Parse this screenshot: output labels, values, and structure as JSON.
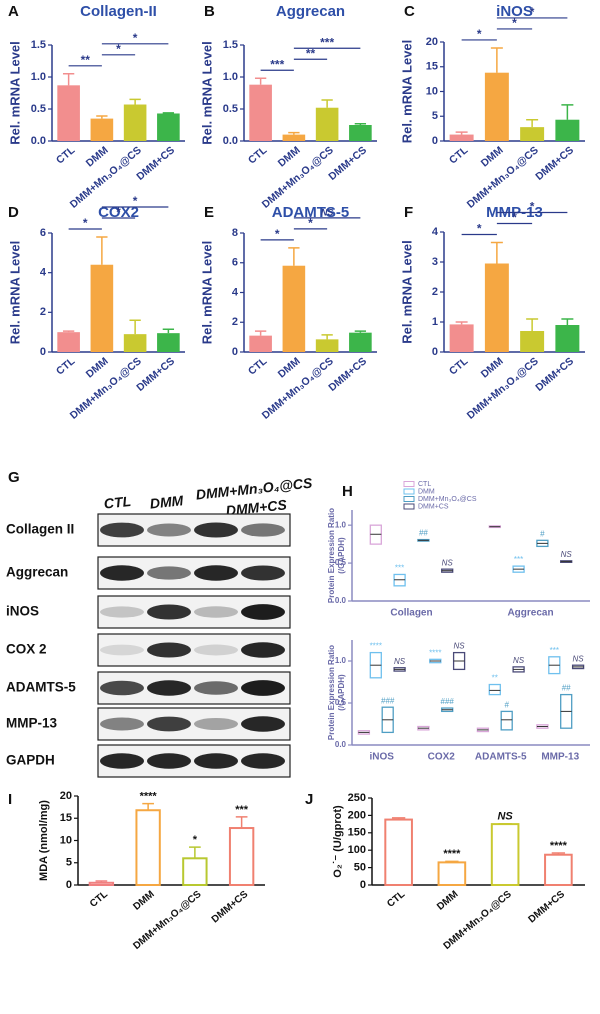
{
  "chart_data": [
    {
      "type": "bar",
      "panel": "A",
      "title": "Collagen-II",
      "ylabel": "Rel. mRNA Level",
      "categories": [
        "CTL",
        "DMM",
        "DMM+Mn₃O₄@CS",
        "DMM+CS"
      ],
      "values": [
        0.87,
        0.35,
        0.57,
        0.43
      ],
      "errors": [
        0.18,
        0.04,
        0.08,
        0.01
      ],
      "colors": [
        "#f28e8e",
        "#f5a742",
        "#c9c930",
        "#3cb54a"
      ],
      "ylim": [
        0,
        1.5
      ],
      "yticks": [
        {
          "value": 0,
          "label": "0.0"
        },
        {
          "value": 0.5,
          "label": "0.5"
        },
        {
          "value": 1,
          "label": "1.0"
        },
        {
          "value": 1.5,
          "label": "1.5"
        }
      ],
      "comparisons": [
        {
          "pair": [
            "CTL",
            "DMM"
          ],
          "label": "**"
        },
        {
          "pair": [
            "DMM",
            "DMM+Mn₃O₄@CS"
          ],
          "label": "*"
        },
        {
          "pair": [
            "DMM",
            "DMM+CS"
          ],
          "label": "*"
        }
      ]
    },
    {
      "type": "bar",
      "panel": "B",
      "title": "Aggrecan",
      "ylabel": "Rel. mRNA Level",
      "categories": [
        "CTL",
        "DMM",
        "DMM+Mn₃O₄@CS",
        "DMM+CS"
      ],
      "values": [
        0.88,
        0.1,
        0.52,
        0.25
      ],
      "errors": [
        0.1,
        0.03,
        0.12,
        0.02
      ],
      "colors": [
        "#f28e8e",
        "#f5a742",
        "#c9c930",
        "#3cb54a"
      ],
      "ylim": [
        0,
        1.5
      ],
      "yticks": [
        {
          "value": 0,
          "label": "0.0"
        },
        {
          "value": 0.5,
          "label": "0.5"
        },
        {
          "value": 1,
          "label": "1.0"
        },
        {
          "value": 1.5,
          "label": "1.5"
        }
      ],
      "comparisons": [
        {
          "pair": [
            "CTL",
            "DMM"
          ],
          "label": "***"
        },
        {
          "pair": [
            "DMM",
            "DMM+Mn₃O₄@CS"
          ],
          "label": "**"
        },
        {
          "pair": [
            "DMM",
            "DMM+CS"
          ],
          "label": "***"
        }
      ]
    },
    {
      "type": "bar",
      "panel": "C",
      "title": "iNOS",
      "ylabel": "Rel. mRNA Level",
      "categories": [
        "CTL",
        "DMM",
        "DMM+Mn₃O₄@CS",
        "DMM+CS"
      ],
      "values": [
        1.3,
        13.8,
        2.8,
        4.3
      ],
      "errors": [
        0.5,
        5,
        1.5,
        3
      ],
      "colors": [
        "#f28e8e",
        "#f5a742",
        "#c9c930",
        "#3cb54a"
      ],
      "ylim": [
        0,
        20
      ],
      "yticks": [
        0,
        5,
        10,
        15,
        20
      ],
      "comparisons": [
        {
          "pair": [
            "CTL",
            "DMM"
          ],
          "label": "*"
        },
        {
          "pair": [
            "DMM",
            "DMM+Mn₃O₄@CS"
          ],
          "label": "*"
        },
        {
          "pair": [
            "DMM",
            "DMM+CS"
          ],
          "label": "*"
        }
      ]
    },
    {
      "type": "bar",
      "panel": "D",
      "title": "COX2",
      "ylabel": "Rel. mRNA Level",
      "categories": [
        "CTL",
        "DMM",
        "DMM+Mn₃O₄@CS",
        "DMM+CS"
      ],
      "values": [
        1.0,
        4.4,
        0.9,
        0.95
      ],
      "errors": [
        0.05,
        1.4,
        0.7,
        0.2
      ],
      "colors": [
        "#f28e8e",
        "#f5a742",
        "#c9c930",
        "#3cb54a"
      ],
      "ylim": [
        0,
        6
      ],
      "yticks": [
        0,
        2,
        4,
        6
      ],
      "comparisons": [
        {
          "pair": [
            "CTL",
            "DMM"
          ],
          "label": "*"
        },
        {
          "pair": [
            "DMM",
            "DMM+Mn₃O₄@CS"
          ],
          "label": "*"
        },
        {
          "pair": [
            "DMM",
            "DMM+CS"
          ],
          "label": "*"
        }
      ]
    },
    {
      "type": "bar",
      "panel": "E",
      "title": "ADAMTS-5",
      "ylabel": "Rel. mRNA Level",
      "categories": [
        "CTL",
        "DMM",
        "DMM+Mn₃O₄@CS",
        "DMM+CS"
      ],
      "values": [
        1.1,
        5.8,
        0.85,
        1.3
      ],
      "errors": [
        0.3,
        1.2,
        0.3,
        0.1
      ],
      "colors": [
        "#f28e8e",
        "#f5a742",
        "#c9c930",
        "#3cb54a"
      ],
      "ylim": [
        0,
        8
      ],
      "yticks": [
        0,
        2,
        4,
        6,
        8
      ],
      "comparisons": [
        {
          "pair": [
            "CTL",
            "DMM"
          ],
          "label": "*"
        },
        {
          "pair": [
            "DMM",
            "DMM+Mn₃O₄@CS"
          ],
          "label": "*"
        },
        {
          "pair": [
            "DMM",
            "DMM+CS"
          ],
          "label": "NS"
        }
      ]
    },
    {
      "type": "bar",
      "panel": "F",
      "title": "MMP-13",
      "ylabel": "Rel. mRNA Level",
      "categories": [
        "CTL",
        "DMM",
        "DMM+Mn₃O₄@CS",
        "DMM+CS"
      ],
      "values": [
        0.92,
        2.95,
        0.7,
        0.9
      ],
      "errors": [
        0.08,
        0.7,
        0.4,
        0.2
      ],
      "colors": [
        "#f28e8e",
        "#f5a742",
        "#c9c930",
        "#3cb54a"
      ],
      "ylim": [
        0,
        4
      ],
      "yticks": [
        0,
        1,
        2,
        3,
        4
      ],
      "comparisons": [
        {
          "pair": [
            "CTL",
            "DMM"
          ],
          "label": "*"
        },
        {
          "pair": [
            "DMM",
            "DMM+Mn₃O₄@CS"
          ],
          "label": "*"
        },
        {
          "pair": [
            "DMM",
            "DMM+CS"
          ],
          "label": "*"
        }
      ]
    },
    {
      "type": "box",
      "panel": "H",
      "ylabel": [
        "Protein Expression Ratio",
        "(/GAPDH)"
      ],
      "legend": "upper left",
      "categories": [
        "Collagen",
        "Aggrecan"
      ],
      "ylim": [
        0,
        1.2
      ],
      "yticks": [
        {
          "value": 0,
          "label": "0.0"
        },
        {
          "value": 0.5,
          "label": "0.5"
        },
        {
          "value": 1,
          "label": "1.0"
        }
      ],
      "series": [
        {
          "name": "CTL",
          "color": "#d9a6d9",
          "values": [
            0.88,
            0.98
          ],
          "low": [
            0.75,
            0.97
          ],
          "high": [
            1.0,
            0.99
          ],
          "annotations": [
            null,
            null
          ]
        },
        {
          "name": "DMM",
          "color": "#6fc0ee",
          "values": [
            0.28,
            0.42
          ],
          "low": [
            0.2,
            0.38
          ],
          "high": [
            0.35,
            0.46
          ],
          "annotations": [
            "***",
            "***"
          ]
        },
        {
          "name": "DMM+Mn₃O₄@CS",
          "color": "#4f9ec4",
          "values": [
            0.8,
            0.76
          ],
          "low": [
            0.79,
            0.72
          ],
          "high": [
            0.81,
            0.8
          ],
          "annotations": [
            "##",
            "#"
          ]
        },
        {
          "name": "DMM+CS",
          "color": "#4a4a78",
          "values": [
            0.4,
            0.52
          ],
          "low": [
            0.38,
            0.51
          ],
          "high": [
            0.42,
            0.53
          ],
          "annotations": [
            "NS",
            "NS"
          ]
        }
      ]
    },
    {
      "type": "box",
      "ylabel": [
        "Protein Expression Ratio",
        "(/GAPDH)"
      ],
      "categories": [
        "iNOS",
        "COX2",
        "ADAMTS-5",
        "MMP-13"
      ],
      "ylim": [
        0,
        1.25
      ],
      "yticks": [
        {
          "value": 0,
          "label": "0.0"
        },
        {
          "value": 0.5,
          "label": "0.5"
        },
        {
          "value": 1,
          "label": "1.0"
        }
      ],
      "series": [
        {
          "name": "CTL",
          "color": "#d9a6d9",
          "values": [
            0.15,
            0.2,
            0.18,
            0.22
          ],
          "low": [
            0.13,
            0.18,
            0.16,
            0.2
          ],
          "high": [
            0.17,
            0.22,
            0.2,
            0.24
          ],
          "annotations": [
            null,
            null,
            null,
            null
          ]
        },
        {
          "name": "DMM",
          "color": "#6fc0ee",
          "values": [
            0.95,
            1.0,
            0.65,
            0.95
          ],
          "low": [
            0.8,
            0.98,
            0.6,
            0.85
          ],
          "high": [
            1.1,
            1.02,
            0.72,
            1.05
          ],
          "annotations": [
            "****",
            "****",
            "**",
            "***"
          ]
        },
        {
          "name": "DMM+Mn₃O₄@CS",
          "color": "#4f9ec4",
          "values": [
            0.3,
            0.42,
            0.3,
            0.4
          ],
          "low": [
            0.15,
            0.4,
            0.18,
            0.2
          ],
          "high": [
            0.45,
            0.44,
            0.4,
            0.6
          ],
          "annotations": [
            "###",
            "###",
            "#",
            "##"
          ]
        },
        {
          "name": "DMM+CS",
          "color": "#4a4a78",
          "values": [
            0.9,
            1.0,
            0.9,
            0.93
          ],
          "low": [
            0.88,
            0.9,
            0.87,
            0.91
          ],
          "high": [
            0.92,
            1.1,
            0.93,
            0.95
          ],
          "annotations": [
            "NS",
            "NS",
            "NS",
            "NS"
          ]
        }
      ]
    },
    {
      "type": "bar",
      "panel": "I",
      "ylabel": "MDA (nmol/mg)",
      "hollow": true,
      "categories": [
        "CTL",
        "DMM",
        "DMM+Mn₃O₄@CS",
        "DMM+CS"
      ],
      "values": [
        0.5,
        16.8,
        6,
        12.8
      ],
      "errors": [
        0.4,
        1.5,
        2.5,
        2.5
      ],
      "colors": [
        "#f08080",
        "#f5a742",
        "#b8c830",
        "#f08070"
      ],
      "ylim": [
        0,
        20
      ],
      "yticks": [
        0,
        5,
        10,
        15,
        20
      ],
      "annotations": [
        null,
        "****",
        "*",
        "***"
      ]
    },
    {
      "type": "bar",
      "panel": "J",
      "ylabel": "O₂˙⁻ (U/gprot)",
      "hollow": true,
      "categories": [
        "CTL",
        "DMM",
        "DMM+Mn₃O₄@CS",
        "DMM+CS"
      ],
      "values": [
        188,
        65,
        175,
        87
      ],
      "errors": [
        5,
        3,
        1,
        5
      ],
      "colors": [
        "#f08070",
        "#f5a742",
        "#c9c930",
        "#f08070"
      ],
      "ylim": [
        0,
        250
      ],
      "yticks": [
        0,
        50,
        100,
        150,
        200,
        250
      ],
      "annotations": [
        null,
        "****",
        "NS",
        "****"
      ]
    }
  ],
  "blot": {
    "panel": "G",
    "columns": [
      "CTL",
      "DMM",
      "DMM+Mn₃O₄@CS",
      "DMM+CS"
    ],
    "rows": [
      "Collagen II",
      "Aggrecan",
      "iNOS",
      "COX 2",
      "ADAMTS-5",
      "MMP-13",
      "GAPDH"
    ]
  }
}
